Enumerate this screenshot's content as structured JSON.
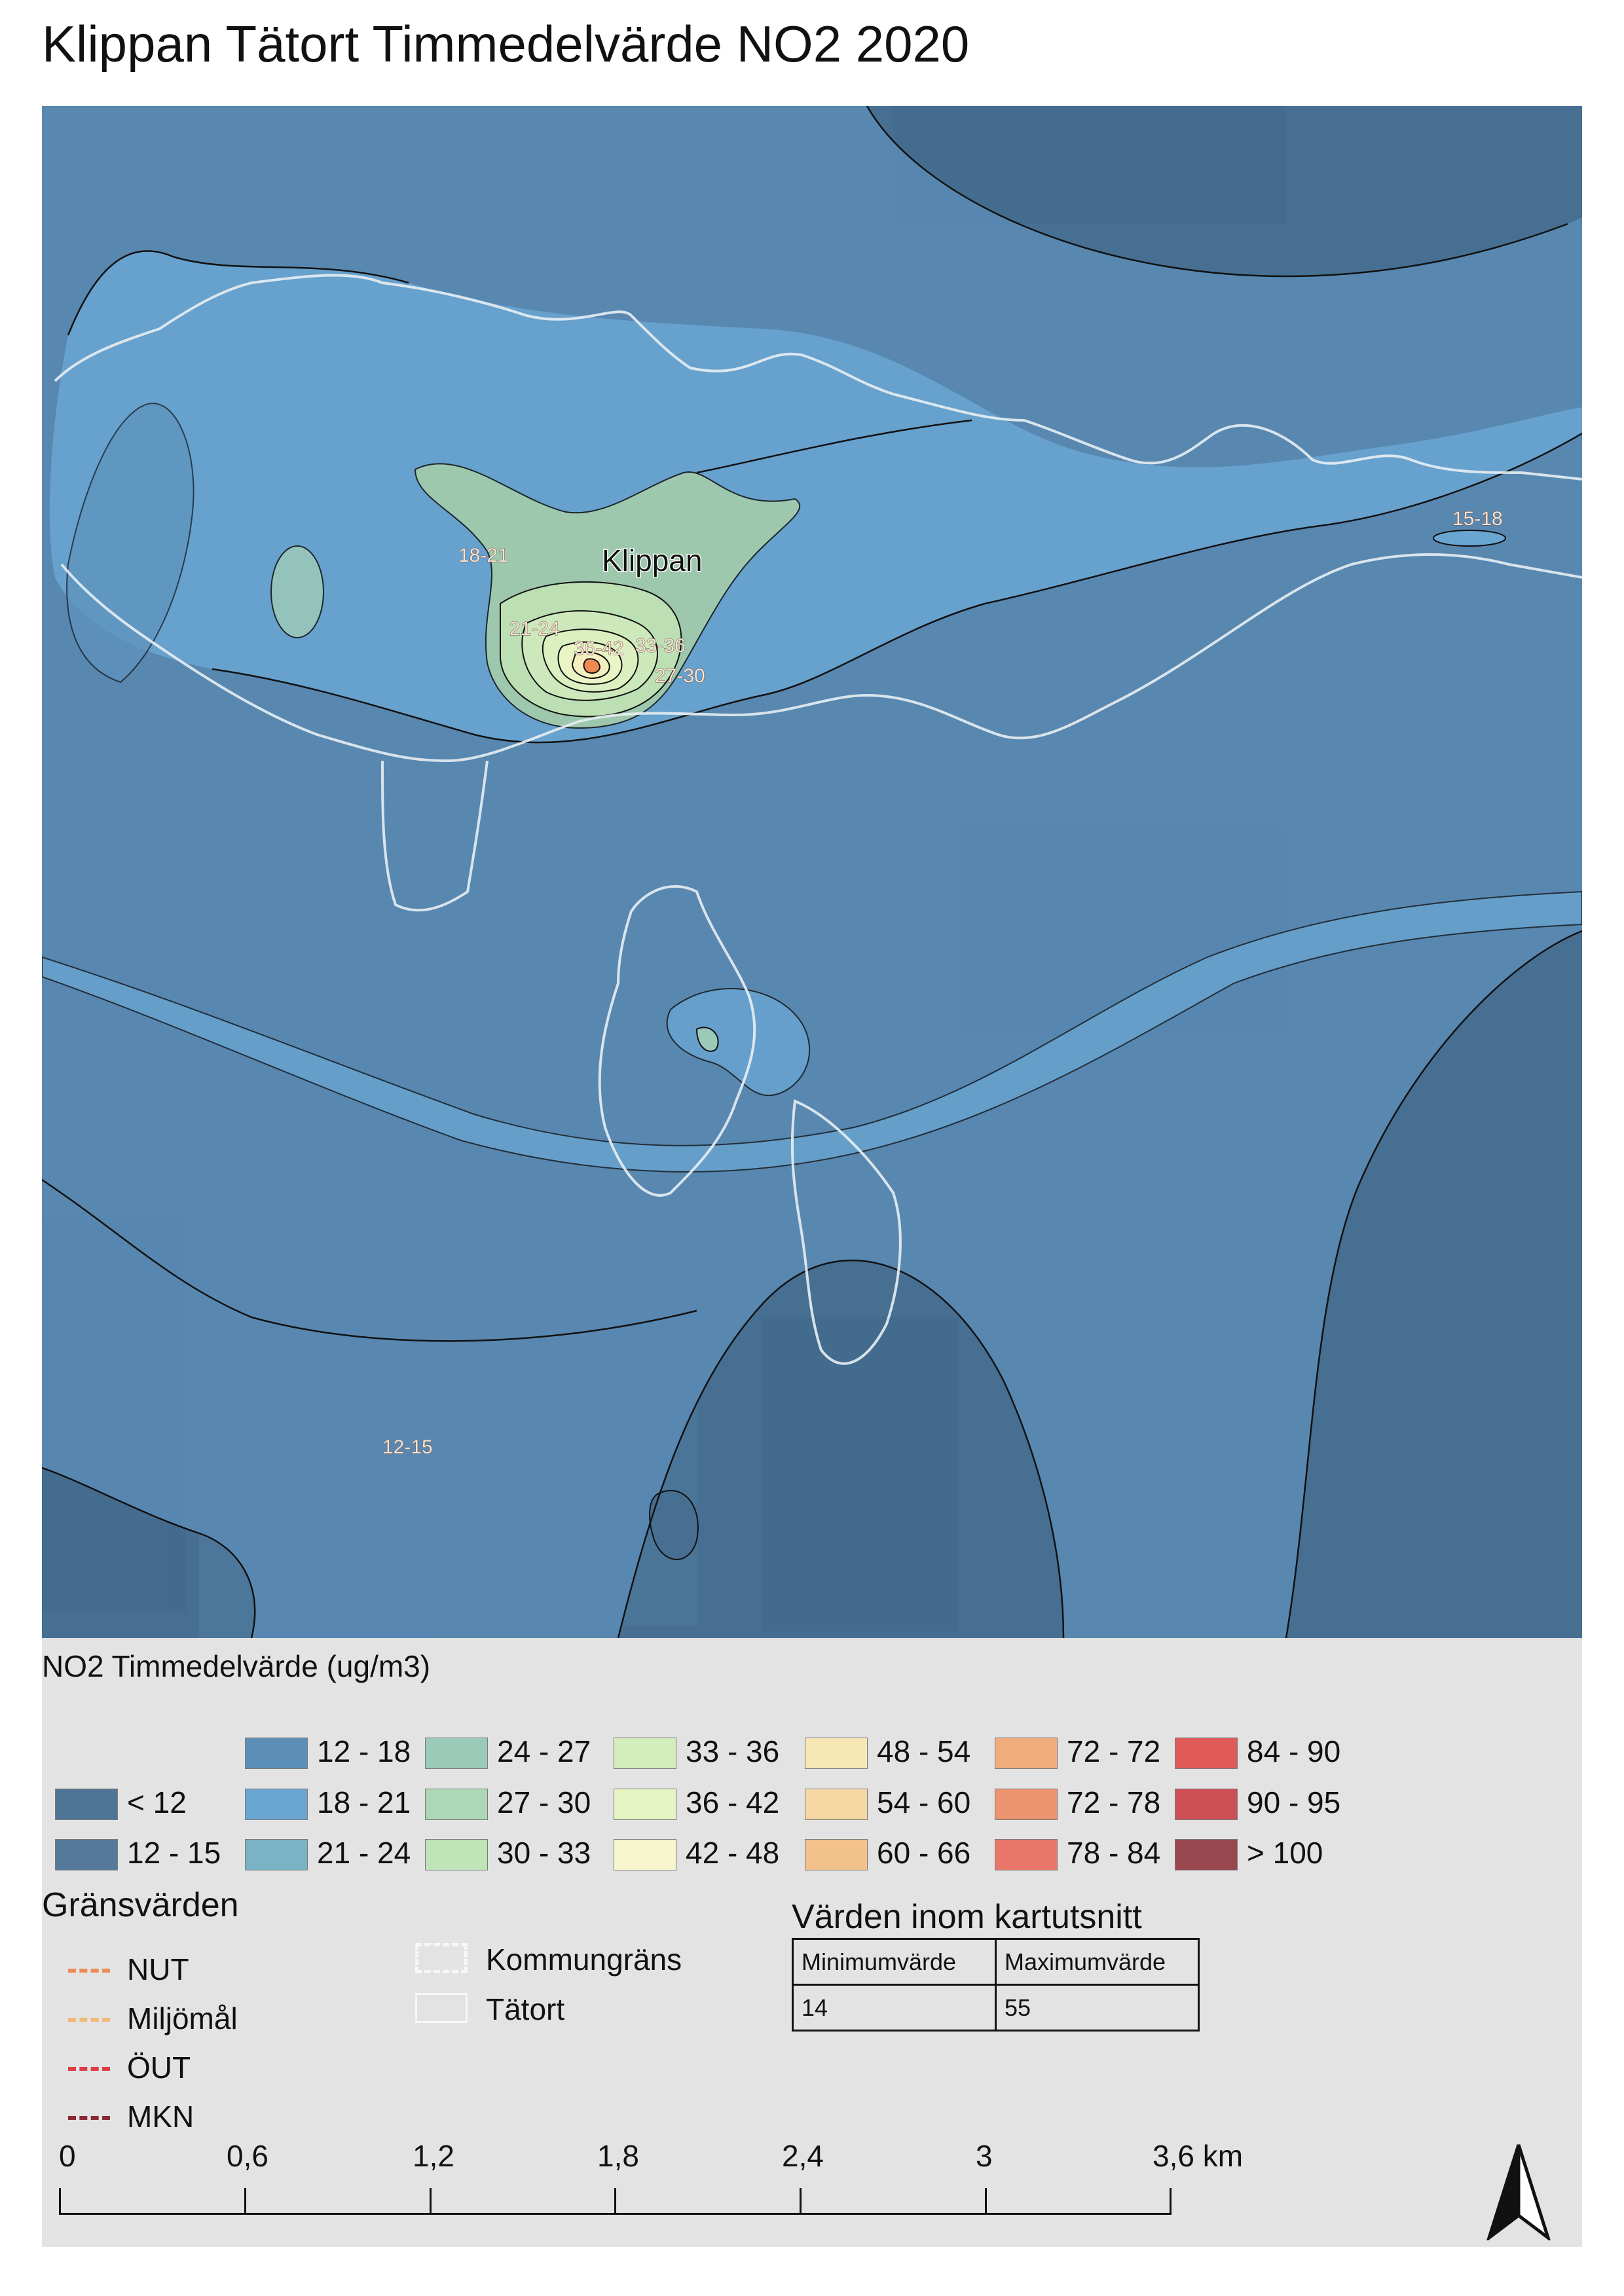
{
  "title": "Klippan Tätort Timmedelvärde NO2 2020",
  "map": {
    "place_label": "Klippan",
    "contour_labels": [
      {
        "text": "18-21"
      },
      {
        "text": "21-24"
      },
      {
        "text": "36-42"
      },
      {
        "text": "33-36"
      },
      {
        "text": "27-30"
      },
      {
        "text": "15-18"
      },
      {
        "text": "12-15"
      }
    ]
  },
  "legend": {
    "title": "NO2 Timmedelvärde (ug/m3)",
    "classes": [
      {
        "label": "< 12",
        "color": "#4f7596"
      },
      {
        "label": "12 - 15",
        "color": "#54799a"
      },
      {
        "label": "12 - 18",
        "color": "#5b8fb8"
      },
      {
        "label": "18 - 21",
        "color": "#6aa6d2"
      },
      {
        "label": "21 - 24",
        "color": "#7ab3c4"
      },
      {
        "label": "24 - 27",
        "color": "#9ccab9"
      },
      {
        "label": "27 - 30",
        "color": "#acd8b8"
      },
      {
        "label": "30 - 33",
        "color": "#bfe4b8"
      },
      {
        "label": "33 - 36",
        "color": "#d3edbb"
      },
      {
        "label": "36 - 42",
        "color": "#e5f4c3"
      },
      {
        "label": "42 - 48",
        "color": "#f7f6cc"
      },
      {
        "label": "48 - 54",
        "color": "#f7e7b5"
      },
      {
        "label": "54 - 60",
        "color": "#f6d8a4"
      },
      {
        "label": "60 - 66",
        "color": "#f3c28c"
      },
      {
        "label": "72 - 72",
        "color": "#f1ac7c"
      },
      {
        "label": "72 - 78",
        "color": "#ec9370"
      },
      {
        "label": "78 - 84",
        "color": "#e8776a"
      },
      {
        "label": "84 - 90",
        "color": "#e05a58"
      },
      {
        "label": "90 - 95",
        "color": "#cd4f56"
      },
      {
        "label": "> 100",
        "color": "#98474f"
      }
    ]
  },
  "limits": {
    "title": "Gränsvärden",
    "items": [
      {
        "label": "NUT",
        "color": "#ef8a55"
      },
      {
        "label": "Miljömål",
        "color": "#f2b877"
      },
      {
        "label": "ÖUT",
        "color": "#de3b45"
      },
      {
        "label": "MKN",
        "color": "#8a2b35"
      }
    ]
  },
  "boundaries": {
    "kommungrans": "Kommungräns",
    "tatort": "Tätort"
  },
  "values_table": {
    "title": "Värden inom kartutsnitt",
    "headers": [
      "Minimumvärde",
      "Maximumvärde"
    ],
    "values": [
      "14",
      "55"
    ]
  },
  "scalebar": {
    "labels": [
      "0",
      "0,6",
      "1,2",
      "1,8",
      "2,4",
      "3",
      "3,6 km"
    ]
  },
  "north_arrow": {
    "icon": "north-arrow-icon"
  }
}
